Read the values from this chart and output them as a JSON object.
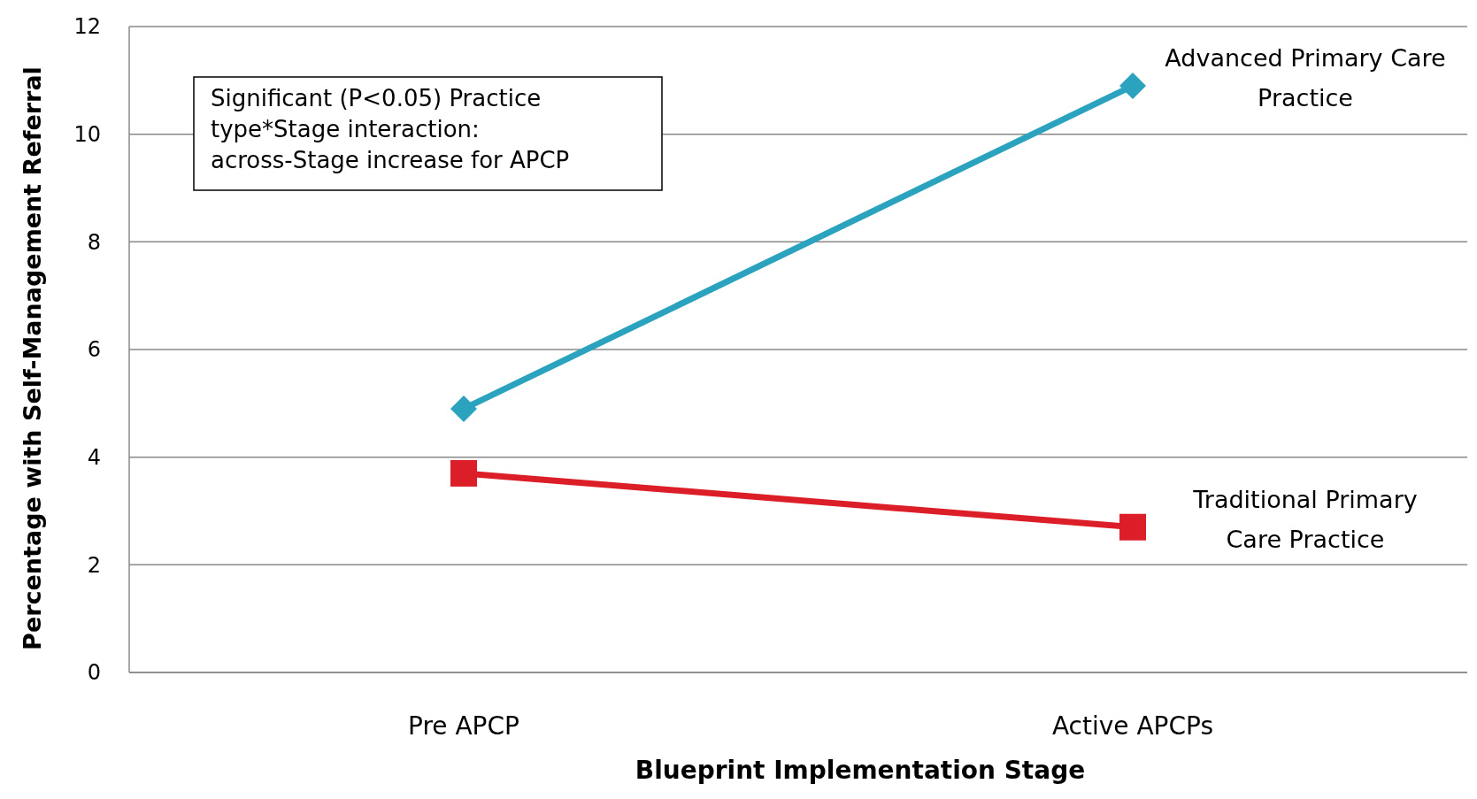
{
  "chart_data": {
    "type": "line",
    "xlabel": "Blueprint Implementation Stage",
    "ylabel": "Percentage with Self-Management Referral",
    "categories": [
      "Pre APCP",
      "Active APCPs"
    ],
    "series": [
      {
        "name": "Advanced Primary Care Practice",
        "color": "#2ba3bf",
        "values": [
          4.9,
          10.9
        ],
        "marker": "diamond"
      },
      {
        "name": "Traditional Primary Care Practice",
        "color": "#dc1e28",
        "values": [
          3.7,
          2.7
        ],
        "marker": "square"
      }
    ],
    "ylim": [
      0,
      12
    ],
    "yticks": [
      0,
      2,
      4,
      6,
      8,
      10,
      12
    ],
    "grid": "y",
    "annotations": [
      "Significant (P<0.05) Practice type*Stage interaction:  across-Stage increase for APCP"
    ]
  }
}
